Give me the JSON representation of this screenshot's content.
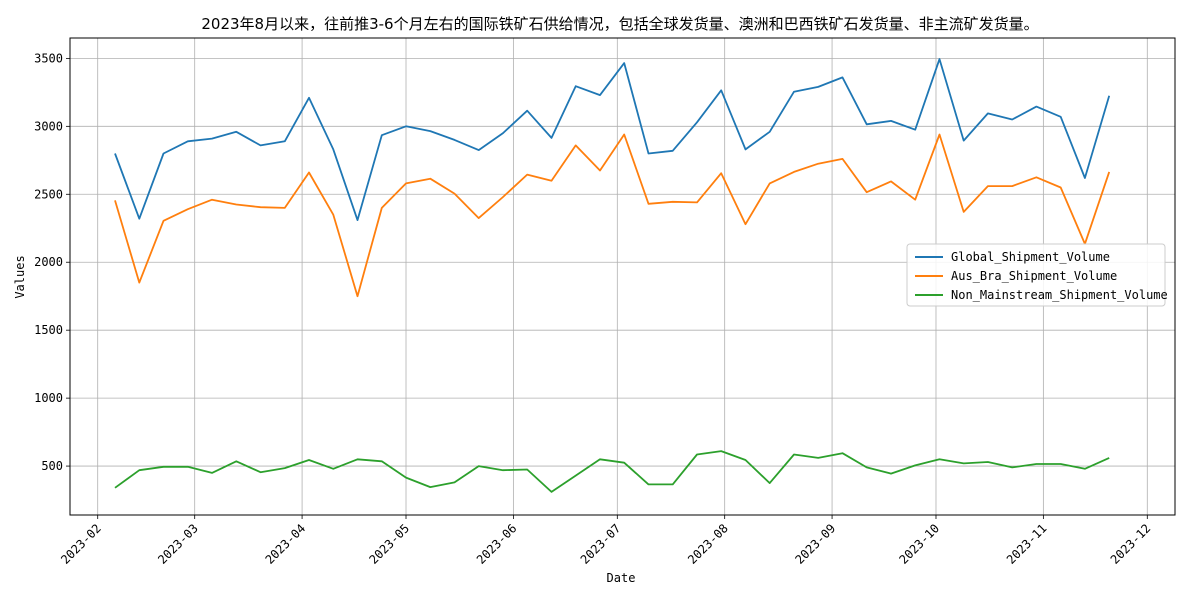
{
  "chart_data": {
    "type": "line",
    "title": "2023年8月以来，往前推3-6个月左右的国际铁矿石供给情况，包括全球发货量、澳洲和巴西铁矿石发货量、非主流矿发货量。",
    "xlabel": "Date",
    "ylabel": "Values",
    "x_tick_labels": [
      "2023-02",
      "2023-03",
      "2023-04",
      "2023-05",
      "2023-06",
      "2023-07",
      "2023-08",
      "2023-09",
      "2023-10",
      "2023-11",
      "2023-12"
    ],
    "x_ticks": [
      "2023-02-01",
      "2023-03-01",
      "2023-04-01",
      "2023-05-01",
      "2023-06-01",
      "2023-07-01",
      "2023-08-01",
      "2023-09-01",
      "2023-10-01",
      "2023-11-01",
      "2023-12-01"
    ],
    "xlim": [
      "2023-01-24",
      "2023-12-09"
    ],
    "y_ticks": [
      500,
      1000,
      1500,
      2000,
      2500,
      3000,
      3500
    ],
    "ylim": [
      140,
      3650
    ],
    "grid": true,
    "legend_position": "center-right",
    "x": [
      "2023-02-06",
      "2023-02-13",
      "2023-02-20",
      "2023-02-27",
      "2023-03-06",
      "2023-03-13",
      "2023-03-20",
      "2023-03-27",
      "2023-04-03",
      "2023-04-10",
      "2023-04-17",
      "2023-04-24",
      "2023-05-01",
      "2023-05-08",
      "2023-05-15",
      "2023-05-22",
      "2023-05-29",
      "2023-06-05",
      "2023-06-12",
      "2023-06-19",
      "2023-06-26",
      "2023-07-03",
      "2023-07-10",
      "2023-07-17",
      "2023-07-24",
      "2023-07-31",
      "2023-08-07",
      "2023-08-14",
      "2023-08-21",
      "2023-08-28",
      "2023-09-04",
      "2023-09-11",
      "2023-09-18",
      "2023-09-25",
      "2023-10-02",
      "2023-10-09",
      "2023-10-16",
      "2023-10-23",
      "2023-10-30",
      "2023-11-06",
      "2023-11-13",
      "2023-11-20"
    ],
    "series": [
      {
        "name": "Global_Shipment_Volume",
        "color": "#1f77b4",
        "values": [
          2800,
          2320,
          2800,
          2890,
          2910,
          2960,
          2860,
          2890,
          3210,
          2830,
          2310,
          2935,
          3000,
          2965,
          2900,
          2825,
          2950,
          3115,
          2915,
          3295,
          3230,
          3465,
          2800,
          2820,
          3030,
          3265,
          2830,
          2960,
          3255,
          3290,
          3360,
          3015,
          3040,
          2975,
          3495,
          2895,
          3095,
          3050,
          3145,
          3070,
          2620,
          3225
        ]
      },
      {
        "name": "Aus_Bra_Shipment_Volume",
        "color": "#ff7f0e",
        "values": [
          2455,
          1850,
          2305,
          2390,
          2460,
          2425,
          2405,
          2400,
          2660,
          2350,
          1750,
          2400,
          2580,
          2615,
          2505,
          2325,
          2480,
          2645,
          2600,
          2860,
          2675,
          2940,
          2430,
          2445,
          2440,
          2655,
          2280,
          2580,
          2665,
          2725,
          2760,
          2515,
          2595,
          2460,
          2940,
          2370,
          2560,
          2560,
          2625,
          2550,
          2135,
          2665
        ]
      },
      {
        "name": "Non_Mainstream_Shipment_Volume",
        "color": "#2ca02c",
        "values": [
          340,
          470,
          495,
          495,
          450,
          535,
          455,
          485,
          545,
          480,
          550,
          535,
          415,
          345,
          380,
          500,
          470,
          475,
          310,
          430,
          550,
          525,
          365,
          365,
          585,
          610,
          545,
          375,
          585,
          560,
          595,
          490,
          445,
          505,
          550,
          520,
          530,
          490,
          515,
          515,
          480,
          560
        ]
      }
    ]
  }
}
